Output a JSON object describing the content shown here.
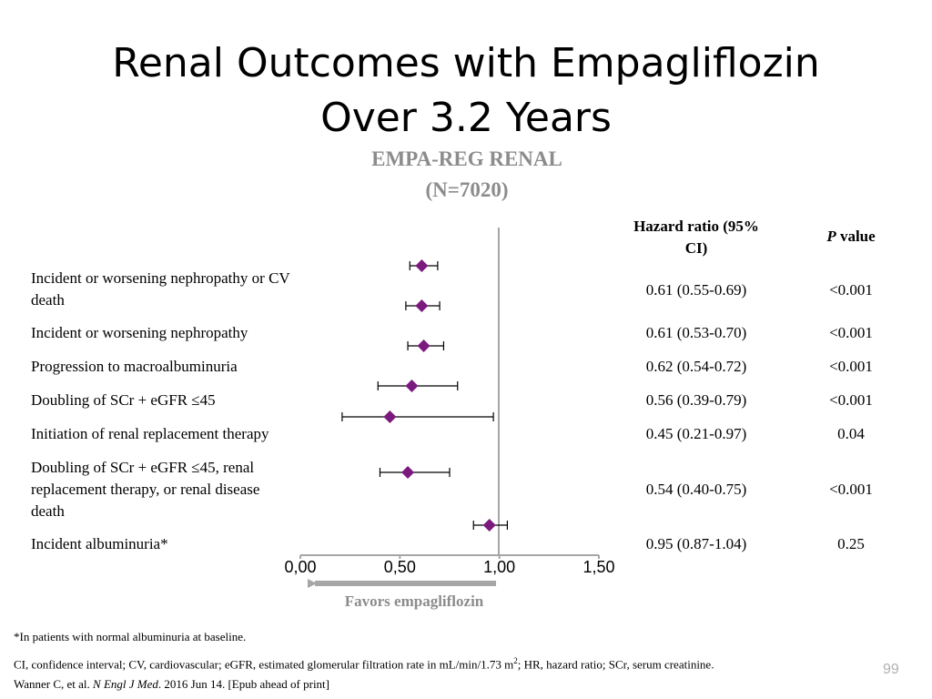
{
  "slide": {
    "title_line1": "Renal Outcomes with Empagliflozin",
    "title_line2": "Over 3.2 Years",
    "subtitle_line1": "EMPA-REG RENAL",
    "subtitle_line2": "(N=7020)",
    "page_number": "99"
  },
  "table": {
    "hr_header_line1": "Hazard ratio (95%",
    "hr_header_line2": "CI)",
    "p_header_italic": "P",
    "p_header_rest": " value"
  },
  "chart_data": {
    "type": "forest",
    "x_ticks": [
      "0,00",
      "0,50",
      "1,00",
      "1,50"
    ],
    "xlim": [
      0.0,
      1.5
    ],
    "reference_line": 1.0,
    "arrow_label": "Favors empagliflozin",
    "marker_color": "#7b1a7e",
    "rows": [
      {
        "label_lines": [
          "Incident or worsening nephropathy or CV",
          "death"
        ],
        "hr_text": "0.61 (0.55-0.69)",
        "p": "<0.001"
      },
      {
        "label_lines": [
          "Incident or worsening nephropathy"
        ],
        "hr_text": "0.61 (0.53-0.70)",
        "p": "<0.001"
      },
      {
        "label_lines": [
          "Progression to macroalbuminuria"
        ],
        "hr_text": "0.62 (0.54-0.72)",
        "p": "<0.001"
      },
      {
        "label_lines": [
          "Doubling of SCr + eGFR ≤45"
        ],
        "hr_text": "0.56 (0.39-0.79)",
        "p": "<0.001"
      },
      {
        "label_lines": [
          "Initiation of renal replacement therapy"
        ],
        "hr_text": "0.45 (0.21-0.97)",
        "p": "0.04"
      },
      {
        "label_lines": [
          "Doubling of SCr + eGFR ≤45, renal",
          "replacement therapy, or renal disease",
          "death"
        ],
        "hr_text": "0.54 (0.40-0.75)",
        "p": "<0.001"
      },
      {
        "label_lines": [
          "Incident albuminuria*"
        ],
        "hr_text": "0.95 (0.87-1.04)",
        "p": "0.25"
      }
    ],
    "markers": [
      {
        "hr": 0.61,
        "lo": 0.55,
        "hi": 0.69
      },
      {
        "hr": 0.61,
        "lo": 0.53,
        "hi": 0.7
      },
      {
        "hr": 0.62,
        "lo": 0.54,
        "hi": 0.72
      },
      {
        "hr": 0.56,
        "lo": 0.39,
        "hi": 0.79
      },
      {
        "hr": 0.45,
        "lo": 0.21,
        "hi": 0.97
      },
      {
        "hr": 0.54,
        "lo": 0.4,
        "hi": 0.75
      },
      {
        "hr": 0.95,
        "lo": 0.87,
        "hi": 1.04
      }
    ]
  },
  "footnotes": {
    "line1": "*In patients with normal albuminuria at baseline.",
    "line2a": "CI, confidence interval; CV, cardiovascular; eGFR, estimated glomerular filtration rate in mL/min/1.73 m",
    "line2sup": "2",
    "line2b": "; HR, hazard ratio; SCr, serum creatinine.",
    "line3a": "Wanner C, et al. ",
    "line3i": "N Engl J Med",
    "line3b": ". 2016 Jun 14. [Epub ahead of print]"
  }
}
